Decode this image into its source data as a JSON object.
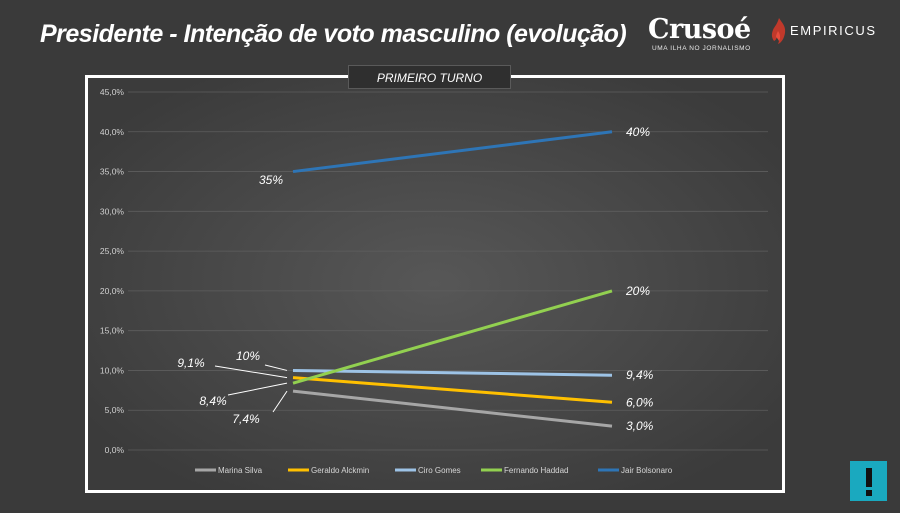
{
  "header": {
    "title": "Presidente - Intenção de voto masculino (evolução)",
    "crusoe_logo": "Crusoé",
    "crusoe_tagline": "UMA ILHA NO JORNALISMO",
    "empiricus_logo": "EMPIRICUS"
  },
  "chart_label": "PRIMEIRO TURNO",
  "alert_icon": "exclamation-icon",
  "chart_data": {
    "type": "line",
    "x": [
      "1",
      "2"
    ],
    "ylim": [
      0,
      45
    ],
    "ytick_labels": [
      "0,0%",
      "5,0%",
      "10,0%",
      "15,0%",
      "20,0%",
      "25,0%",
      "30,0%",
      "35,0%",
      "40,0%",
      "45,0%"
    ],
    "legend_position": "bottom",
    "grid": true,
    "series": [
      {
        "name": "Marina Silva",
        "color": "#a6a6a6",
        "values": [
          7.4,
          3.0
        ],
        "labels": [
          "7,4%",
          "3,0%"
        ]
      },
      {
        "name": "Geraldo Alckmin",
        "color": "#ffc000",
        "values": [
          9.1,
          6.0
        ],
        "labels": [
          "9,1%",
          "6,0%"
        ]
      },
      {
        "name": "Ciro Gomes",
        "color": "#9dc3e6",
        "values": [
          10.0,
          9.4
        ],
        "labels": [
          "10%",
          "9,4%"
        ]
      },
      {
        "name": "Fernando Haddad",
        "color": "#92d050",
        "values": [
          8.4,
          20.0
        ],
        "labels": [
          "8,4%",
          "20%"
        ]
      },
      {
        "name": "Jair Bolsonaro",
        "color": "#2e75b6",
        "values": [
          35.0,
          40.0
        ],
        "labels": [
          "35%",
          "40%"
        ]
      }
    ]
  }
}
